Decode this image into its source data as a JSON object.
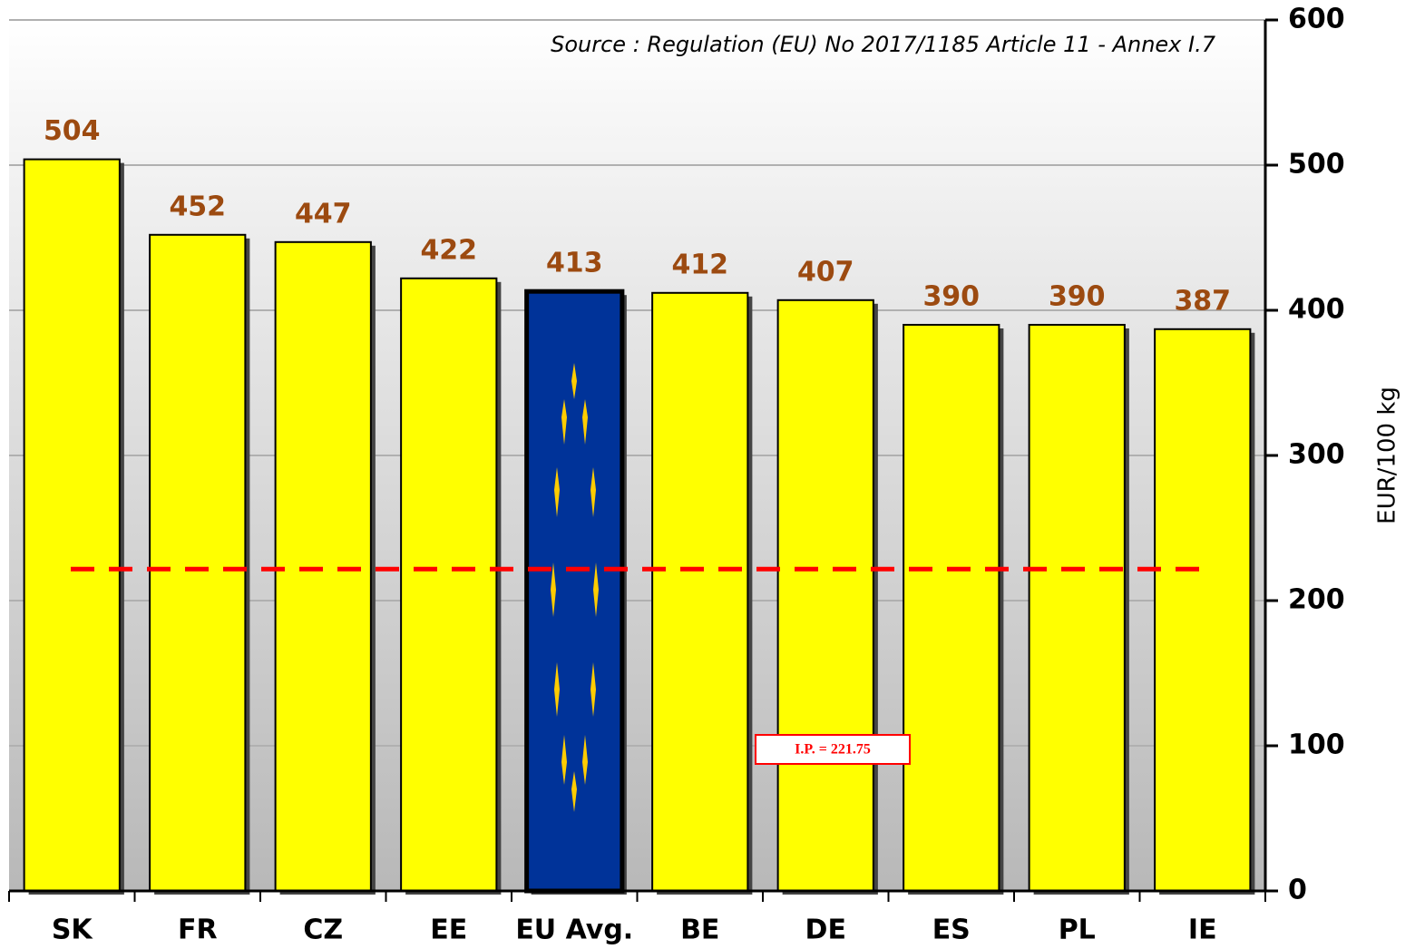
{
  "chart_data": {
    "type": "bar",
    "source": "Source : Regulation (EU) No 2017/1185 Article 11 - Annex I.7",
    "y_label": "EUR/100 kg",
    "categories": [
      "SK",
      "FR",
      "CZ",
      "EE",
      "EU Avg.",
      "BE",
      "DE",
      "ES",
      "PL",
      "IE"
    ],
    "values": [
      504,
      452,
      447,
      422,
      413,
      412,
      407,
      390,
      390,
      387
    ],
    "colors": [
      "#ffff00",
      "#ffff00",
      "#ffff00",
      "#ffff00",
      "#003399",
      "#ffff00",
      "#ffff00",
      "#ffff00",
      "#ffff00",
      "#ffff00"
    ],
    "ylim": [
      0,
      600
    ],
    "yticks": [
      0,
      100,
      200,
      300,
      400,
      500,
      600
    ],
    "grid": true,
    "y_axis_side": "right",
    "reference_line": {
      "value": 221.75,
      "label": "I.P. = 221.75",
      "color": "#ff0000"
    }
  }
}
